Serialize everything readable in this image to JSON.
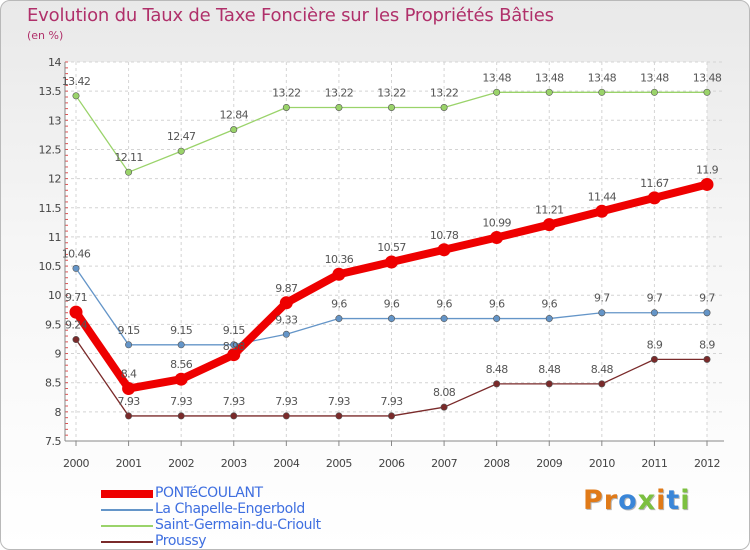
{
  "chart_data": {
    "type": "line",
    "title": "Evolution du Taux de Taxe Foncière sur les Propriétés Bâties",
    "ylabel": "(en %)",
    "x": [
      "2000",
      "2001",
      "2002",
      "2003",
      "2004",
      "2005",
      "2006",
      "2007",
      "2008",
      "2009",
      "2010",
      "2011",
      "2012"
    ],
    "ylim": [
      7.5,
      14
    ],
    "yticks": [
      "7.5",
      "8",
      "8.5",
      "9",
      "9.5",
      "10",
      "10.5",
      "11",
      "11.5",
      "12",
      "12.5",
      "13",
      "13.5",
      "14"
    ],
    "series": [
      {
        "name": "PONTéCOULANT",
        "color": "#ee0000",
        "values": [
          9.71,
          8.4,
          8.56,
          8.98,
          9.87,
          10.36,
          10.57,
          10.78,
          10.99,
          11.21,
          11.44,
          11.67,
          11.9
        ],
        "labels": [
          "9.71",
          "8.4",
          "8.56",
          "",
          "9.87",
          "10.36",
          "10.57",
          "10.78",
          "10.99",
          "11.21",
          "11.44",
          "11.67",
          "11.9"
        ]
      },
      {
        "name": "La Chapelle-Engerbold",
        "color": "#6495c8",
        "values": [
          10.46,
          9.15,
          9.15,
          9.15,
          9.33,
          9.6,
          9.6,
          9.6,
          9.6,
          9.6,
          9.7,
          9.7,
          9.7
        ],
        "labels": [
          "10.46",
          "9.15",
          "9.15",
          "9.15",
          "9.33",
          "9.6",
          "9.6",
          "9.6",
          "9.6",
          "9.6",
          "9.7",
          "9.7",
          "9.7"
        ]
      },
      {
        "name": "Saint-Germain-du-Crioult",
        "color": "#9ad36a",
        "values": [
          13.42,
          12.11,
          12.47,
          12.84,
          13.22,
          13.22,
          13.22,
          13.22,
          13.48,
          13.48,
          13.48,
          13.48,
          13.48
        ],
        "labels": [
          "13.42",
          "12.11",
          "12.47",
          "12.84",
          "13.22",
          "13.22",
          "13.22",
          "13.22",
          "13.48",
          "13.48",
          "13.48",
          "13.48",
          "13.48"
        ]
      },
      {
        "name": "Proussy",
        "color": "#7a2a2a",
        "values": [
          9.24,
          7.93,
          7.93,
          7.93,
          7.93,
          7.93,
          7.93,
          8.08,
          8.48,
          8.48,
          8.48,
          8.9,
          8.9
        ],
        "labels": [
          "9.24",
          "7.93",
          "7.93",
          "7.93",
          "7.93",
          "7.93",
          "7.93",
          "8.08",
          "8.48",
          "8.48",
          "8.48",
          "8.9",
          "8.9"
        ]
      }
    ],
    "overlap_label": "8.98",
    "grid": true,
    "legend_position": "bottom-left"
  },
  "logo": {
    "letters": [
      "P",
      "r",
      "o",
      "x",
      "i",
      "t",
      "i"
    ],
    "colors": [
      "#e07a18",
      "#e07a18",
      "#3a86d8",
      "#7cc040",
      "#e07a18",
      "#3a86d8",
      "#7cc040"
    ]
  }
}
